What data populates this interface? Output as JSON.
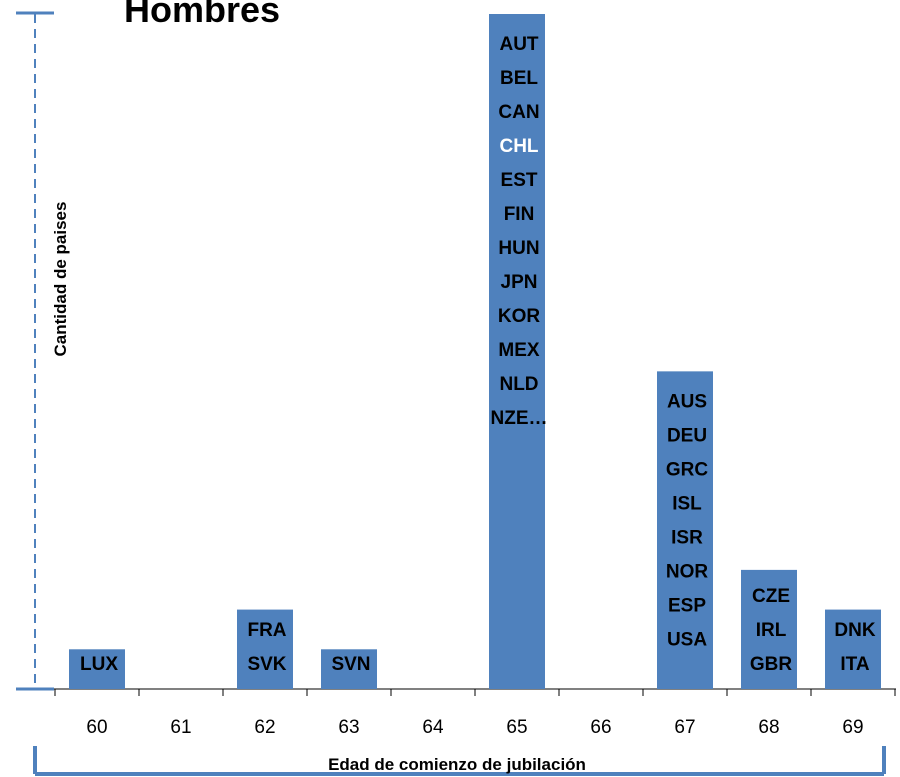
{
  "chart_data": {
    "type": "bar",
    "title": "Hombres",
    "xlabel": "Edad de comienzo de jubilación",
    "ylabel": "Cantidad de paises",
    "categories": [
      "60",
      "61",
      "62",
      "63",
      "64",
      "65",
      "66",
      "67",
      "68",
      "69"
    ],
    "values": [
      1,
      0,
      2,
      1,
      0,
      17,
      0,
      8,
      3,
      2
    ],
    "bar_labels": [
      [
        "LUX"
      ],
      [],
      [
        "FRA",
        "SVK"
      ],
      [
        "SVN"
      ],
      [],
      [
        "AUT",
        "BEL",
        "CAN",
        "CHL",
        "EST",
        "FIN",
        "HUN",
        "JPN",
        "KOR",
        "MEX",
        "NLD",
        "NZE…"
      ],
      [],
      [
        "AUS",
        "DEU",
        "GRC",
        "ISL",
        "ISR",
        "NOR",
        "ESP",
        "USA"
      ],
      [
        "CZE",
        "IRL",
        "GBR"
      ],
      [
        "DNK",
        "ITA"
      ]
    ],
    "highlight_label": "CHL",
    "ylim": [
      0,
      17
    ],
    "grid": false,
    "legend": "none",
    "colors": {
      "bar": "#4f81bd",
      "axis": "#4f81bd",
      "label": "#000000",
      "highlight": "#ffffff"
    }
  }
}
